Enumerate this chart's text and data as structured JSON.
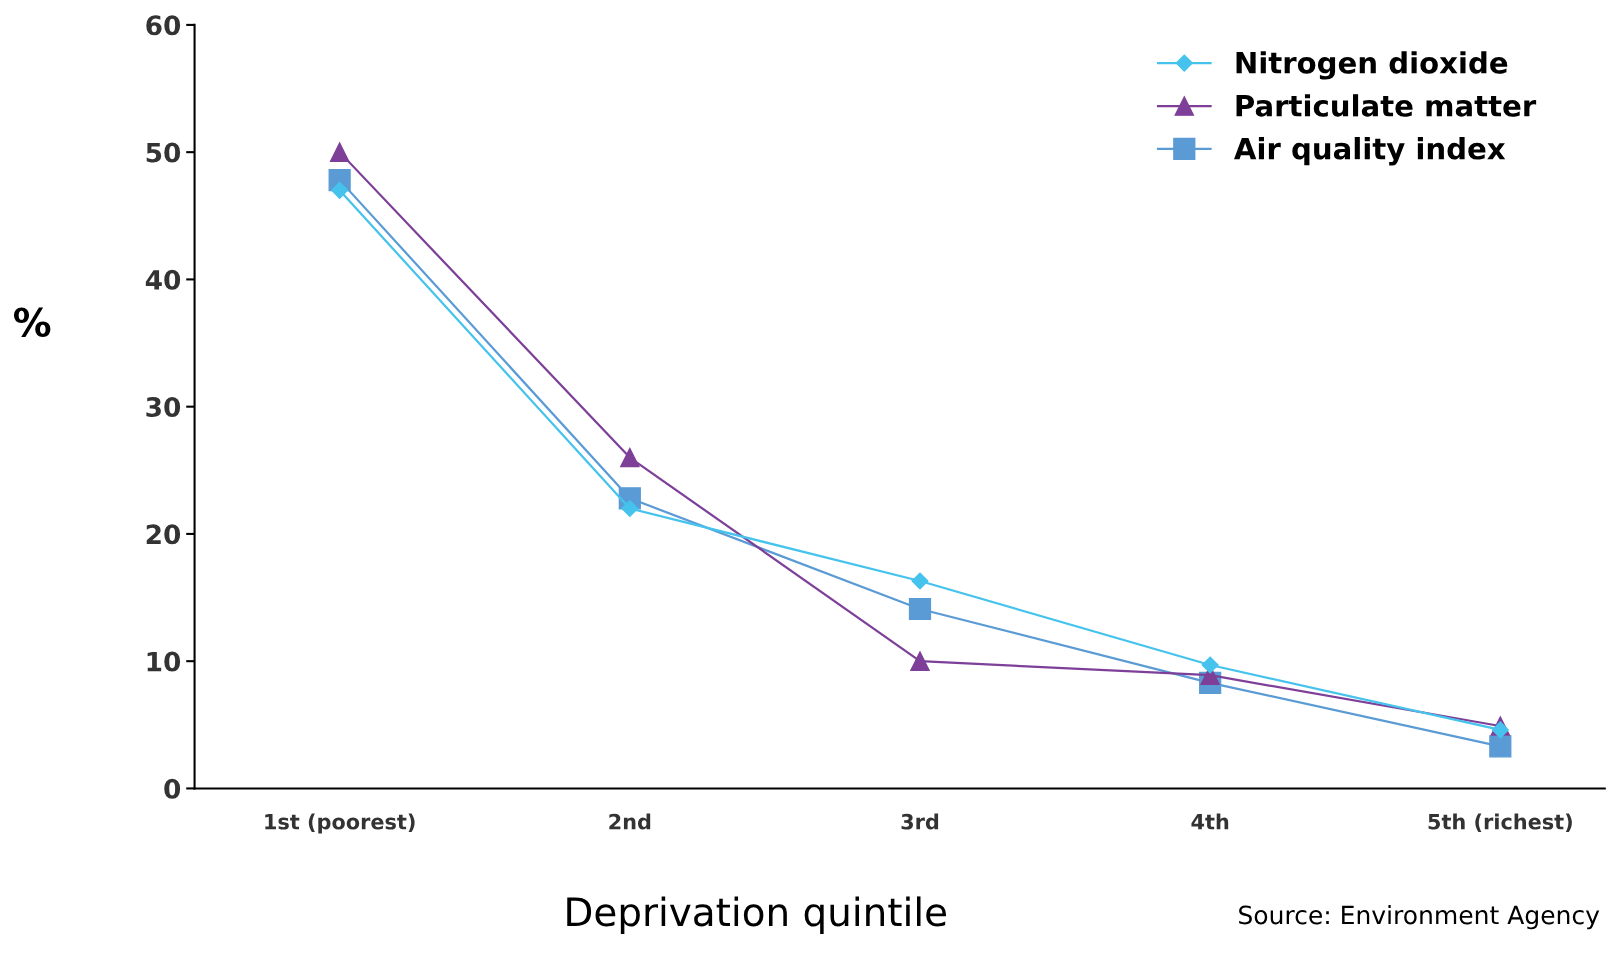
{
  "chart_data": {
    "type": "line",
    "categories": [
      "1st (poorest)",
      "2nd",
      "3rd",
      "4th",
      "5th (richest)"
    ],
    "series": [
      {
        "name": "Nitrogen dioxide",
        "color": "#45c3ec",
        "marker": "diamond",
        "values": [
          47,
          22,
          16.3,
          9.7,
          4.6
        ]
      },
      {
        "name": "Particulate matter",
        "color": "#7d3f98",
        "marker": "triangle",
        "values": [
          50,
          26,
          10,
          8.9,
          4.9
        ]
      },
      {
        "name": "Air quality index",
        "color": "#5b9bd5",
        "marker": "square",
        "values": [
          47.8,
          22.8,
          14.1,
          8.3,
          3.3
        ]
      }
    ],
    "xlabel": "Deprivation quintile",
    "ylabel": "%",
    "ylim": [
      0,
      60
    ],
    "yticks": [
      0,
      10,
      20,
      30,
      40,
      50,
      60
    ],
    "grid": false,
    "legend": "top right",
    "line_style": "solid",
    "annotations": [
      "Source: Environment Agency"
    ]
  }
}
